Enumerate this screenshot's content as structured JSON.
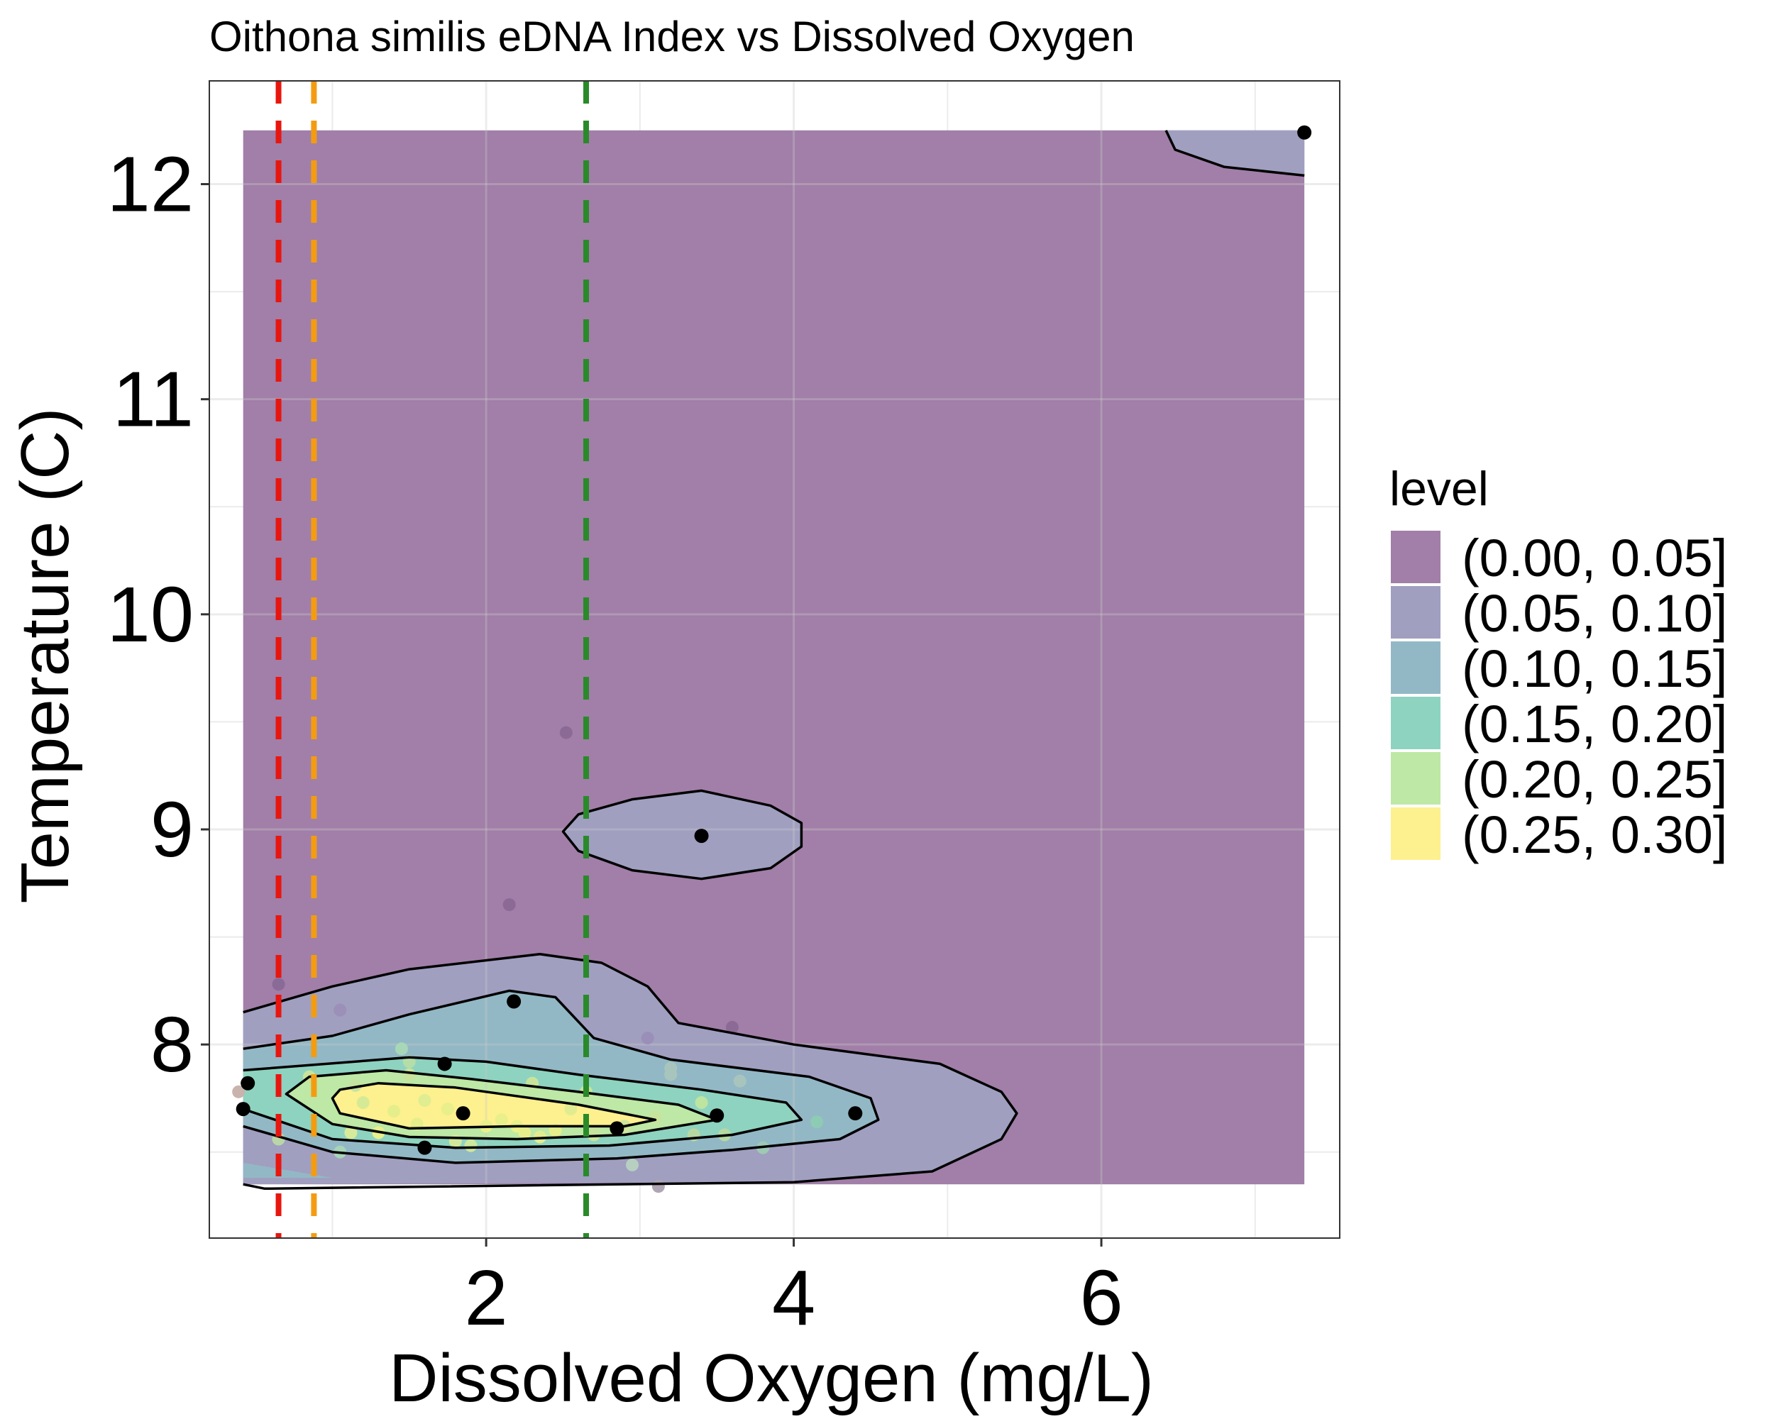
{
  "chart_data": {
    "type": "contour",
    "title": "Oithona similis eDNA Index vs Dissolved Oxygen",
    "xlabel": "Dissolved Oxygen (mg/L)",
    "ylabel": "Temperature (C)",
    "xlim": [
      0.2,
      7.55
    ],
    "ylim": [
      7.1,
      12.48
    ],
    "x_ticks": [
      2,
      4,
      6
    ],
    "y_ticks": [
      8,
      9,
      10,
      11,
      12
    ],
    "grid": true,
    "legend": {
      "title": "level",
      "position": "right",
      "entries": [
        {
          "label": "(0.00, 0.05]",
          "color": "#a17fa8"
        },
        {
          "label": "(0.05, 0.10]",
          "color": "#a09fc0"
        },
        {
          "label": "(0.10, 0.15]",
          "color": "#93b8c5"
        },
        {
          "label": "(0.15, 0.20]",
          "color": "#8ed3bf"
        },
        {
          "label": "(0.20, 0.25]",
          "color": "#bde8a5"
        },
        {
          "label": "(0.25, 0.30]",
          "color": "#fdf08f"
        }
      ]
    },
    "density_region": {
      "x": [
        0.42,
        7.32
      ],
      "y": [
        7.35,
        12.25
      ]
    },
    "reference_lines": [
      {
        "x": 0.65,
        "color": "#e8160f",
        "style": "dashed"
      },
      {
        "x": 0.88,
        "color": "#f39c12",
        "style": "dashed"
      },
      {
        "x": 2.65,
        "color": "#2a8a2a",
        "style": "dashed"
      }
    ],
    "contours": [
      {
        "level": "(0.05, 0.10]",
        "closed": false,
        "points": [
          [
            0.42,
            7.35
          ],
          [
            0.56,
            7.33
          ],
          [
            4.0,
            7.36
          ],
          [
            4.9,
            7.41
          ],
          [
            5.35,
            7.56
          ],
          [
            5.45,
            7.68
          ],
          [
            5.35,
            7.78
          ],
          [
            4.95,
            7.91
          ],
          [
            4.0,
            8.0
          ],
          [
            3.25,
            8.1
          ],
          [
            3.05,
            8.27
          ],
          [
            2.75,
            8.38
          ],
          [
            2.35,
            8.42
          ],
          [
            1.5,
            8.35
          ],
          [
            1.0,
            8.27
          ],
          [
            0.42,
            8.15
          ]
        ]
      },
      {
        "level": "(0.05, 0.10]",
        "closed": true,
        "points": [
          [
            2.5,
            8.99
          ],
          [
            2.6,
            8.9
          ],
          [
            2.95,
            8.81
          ],
          [
            3.4,
            8.77
          ],
          [
            3.85,
            8.82
          ],
          [
            4.05,
            8.92
          ],
          [
            4.05,
            9.03
          ],
          [
            3.85,
            9.11
          ],
          [
            3.4,
            9.18
          ],
          [
            2.95,
            9.14
          ],
          [
            2.6,
            9.07
          ]
        ]
      },
      {
        "level": "(0.05, 0.10]",
        "closed": false,
        "points": [
          [
            6.42,
            12.25
          ],
          [
            6.48,
            12.16
          ],
          [
            6.8,
            12.08
          ],
          [
            7.32,
            12.04
          ]
        ]
      },
      {
        "level": "(0.10, 0.15]",
        "closed": false,
        "points": [
          [
            0.42,
            7.62
          ],
          [
            1.0,
            7.5
          ],
          [
            1.8,
            7.45
          ],
          [
            2.85,
            7.47
          ],
          [
            3.6,
            7.51
          ],
          [
            4.3,
            7.56
          ],
          [
            4.55,
            7.65
          ],
          [
            4.5,
            7.75
          ],
          [
            4.1,
            7.85
          ],
          [
            3.2,
            7.93
          ],
          [
            2.7,
            8.03
          ],
          [
            2.45,
            8.22
          ],
          [
            2.15,
            8.25
          ],
          [
            1.5,
            8.14
          ],
          [
            1.0,
            8.04
          ],
          [
            0.42,
            7.98
          ]
        ]
      },
      {
        "level": "(0.15, 0.20]",
        "closed": false,
        "points": [
          [
            0.42,
            7.7
          ],
          [
            1.0,
            7.56
          ],
          [
            1.8,
            7.52
          ],
          [
            2.8,
            7.53
          ],
          [
            3.6,
            7.58
          ],
          [
            4.05,
            7.65
          ],
          [
            3.95,
            7.73
          ],
          [
            3.4,
            7.79
          ],
          [
            2.6,
            7.86
          ],
          [
            2.0,
            7.92
          ],
          [
            1.5,
            7.94
          ],
          [
            0.42,
            7.88
          ]
        ]
      },
      {
        "level": "(0.20, 0.25]",
        "closed": true,
        "points": [
          [
            0.7,
            7.77
          ],
          [
            1.0,
            7.63
          ],
          [
            1.5,
            7.57
          ],
          [
            2.2,
            7.56
          ],
          [
            2.9,
            7.58
          ],
          [
            3.5,
            7.65
          ],
          [
            3.25,
            7.72
          ],
          [
            2.6,
            7.78
          ],
          [
            1.9,
            7.84
          ],
          [
            1.35,
            7.88
          ],
          [
            0.85,
            7.85
          ]
        ]
      },
      {
        "level": "(0.25, 0.30]",
        "closed": true,
        "points": [
          [
            1.0,
            7.75
          ],
          [
            1.05,
            7.68
          ],
          [
            1.5,
            7.61
          ],
          [
            2.2,
            7.62
          ],
          [
            2.9,
            7.62
          ],
          [
            3.1,
            7.65
          ],
          [
            2.6,
            7.72
          ],
          [
            1.8,
            7.8
          ],
          [
            1.3,
            7.82
          ],
          [
            1.05,
            7.79
          ]
        ]
      }
    ],
    "density_fills": [
      {
        "color": "#a09fc0",
        "points": [
          [
            0.42,
            7.35
          ],
          [
            4.0,
            7.36
          ],
          [
            4.9,
            7.41
          ],
          [
            5.35,
            7.56
          ],
          [
            5.45,
            7.68
          ],
          [
            5.35,
            7.78
          ],
          [
            4.95,
            7.91
          ],
          [
            4.0,
            8.0
          ],
          [
            3.25,
            8.1
          ],
          [
            3.05,
            8.27
          ],
          [
            2.75,
            8.38
          ],
          [
            2.35,
            8.42
          ],
          [
            1.5,
            8.35
          ],
          [
            1.0,
            8.27
          ],
          [
            0.42,
            8.15
          ]
        ]
      },
      {
        "color": "#a09fc0",
        "points": [
          [
            2.5,
            8.99
          ],
          [
            2.6,
            8.9
          ],
          [
            2.95,
            8.81
          ],
          [
            3.4,
            8.77
          ],
          [
            3.85,
            8.82
          ],
          [
            4.05,
            8.92
          ],
          [
            4.05,
            9.03
          ],
          [
            3.85,
            9.11
          ],
          [
            3.4,
            9.18
          ],
          [
            2.95,
            9.14
          ],
          [
            2.6,
            9.07
          ]
        ]
      },
      {
        "color": "#a09fc0",
        "points": [
          [
            6.42,
            12.25
          ],
          [
            6.48,
            12.16
          ],
          [
            6.8,
            12.08
          ],
          [
            7.32,
            12.04
          ],
          [
            7.32,
            12.25
          ]
        ]
      },
      {
        "color": "#93b8c5",
        "points": [
          [
            0.42,
            7.38
          ],
          [
            1.0,
            7.38
          ],
          [
            0.42,
            7.45
          ],
          [
            0.42,
            7.62
          ],
          [
            1.0,
            7.5
          ],
          [
            1.8,
            7.45
          ],
          [
            2.85,
            7.47
          ],
          [
            3.6,
            7.51
          ],
          [
            4.3,
            7.56
          ],
          [
            4.55,
            7.65
          ],
          [
            4.5,
            7.75
          ],
          [
            4.1,
            7.85
          ],
          [
            3.2,
            7.93
          ],
          [
            2.7,
            8.03
          ],
          [
            2.45,
            8.22
          ],
          [
            2.15,
            8.25
          ],
          [
            1.5,
            8.14
          ],
          [
            1.0,
            8.04
          ],
          [
            0.42,
            7.98
          ]
        ]
      },
      {
        "color": "#8ed3bf",
        "points": [
          [
            0.42,
            7.7
          ],
          [
            1.0,
            7.56
          ],
          [
            1.8,
            7.52
          ],
          [
            2.8,
            7.53
          ],
          [
            3.6,
            7.58
          ],
          [
            4.05,
            7.65
          ],
          [
            3.95,
            7.73
          ],
          [
            3.4,
            7.79
          ],
          [
            2.6,
            7.86
          ],
          [
            2.0,
            7.92
          ],
          [
            1.5,
            7.94
          ],
          [
            0.42,
            7.88
          ]
        ]
      },
      {
        "color": "#bde8a5",
        "points": [
          [
            0.7,
            7.77
          ],
          [
            1.0,
            7.63
          ],
          [
            1.5,
            7.57
          ],
          [
            2.2,
            7.56
          ],
          [
            2.9,
            7.58
          ],
          [
            3.5,
            7.65
          ],
          [
            3.25,
            7.72
          ],
          [
            2.6,
            7.78
          ],
          [
            1.9,
            7.84
          ],
          [
            1.35,
            7.88
          ],
          [
            0.85,
            7.85
          ]
        ]
      },
      {
        "color": "#fdf08f",
        "points": [
          [
            1.0,
            7.75
          ],
          [
            1.05,
            7.68
          ],
          [
            1.5,
            7.61
          ],
          [
            2.2,
            7.62
          ],
          [
            2.9,
            7.62
          ],
          [
            3.1,
            7.65
          ],
          [
            2.6,
            7.72
          ],
          [
            1.8,
            7.8
          ],
          [
            1.3,
            7.82
          ],
          [
            1.05,
            7.79
          ]
        ]
      }
    ],
    "points_solid": [
      [
        0.42,
        7.7
      ],
      [
        0.45,
        7.82
      ],
      [
        1.73,
        7.91
      ],
      [
        1.85,
        7.68
      ],
      [
        1.6,
        7.52
      ],
      [
        2.18,
        8.2
      ],
      [
        2.85,
        7.61
      ],
      [
        3.5,
        7.67
      ],
      [
        3.4,
        8.97
      ],
      [
        4.4,
        7.68
      ],
      [
        7.32,
        12.24
      ]
    ],
    "points_faint": [
      {
        "x": 0.39,
        "y": 7.78,
        "color": "#c8b3ad"
      },
      {
        "x": 0.65,
        "y": 8.28,
        "color": "#8a6a96"
      },
      {
        "x": 0.65,
        "y": 7.56,
        "color": "#b9d7a6"
      },
      {
        "x": 0.85,
        "y": 7.85,
        "color": "#c8e49c"
      },
      {
        "x": 1.05,
        "y": 8.16,
        "color": "#9c8fb8"
      },
      {
        "x": 1.05,
        "y": 7.5,
        "color": "#a7d4b8"
      },
      {
        "x": 1.12,
        "y": 7.59,
        "color": "#d6eb9a"
      },
      {
        "x": 1.15,
        "y": 7.81,
        "color": "#c4e4a0"
      },
      {
        "x": 1.2,
        "y": 7.73,
        "color": "#d6ea95"
      },
      {
        "x": 1.3,
        "y": 7.59,
        "color": "#e8ef8e"
      },
      {
        "x": 1.4,
        "y": 7.69,
        "color": "#e6ee8c"
      },
      {
        "x": 1.45,
        "y": 7.98,
        "color": "#a8d7b8"
      },
      {
        "x": 1.5,
        "y": 7.92,
        "color": "#b5dda8"
      },
      {
        "x": 1.5,
        "y": 7.86,
        "color": "#c8e49c"
      },
      {
        "x": 1.55,
        "y": 7.63,
        "color": "#e6ee8c"
      },
      {
        "x": 1.6,
        "y": 7.74,
        "color": "#e0ed90"
      },
      {
        "x": 1.75,
        "y": 7.7,
        "color": "#e9ef8a"
      },
      {
        "x": 1.8,
        "y": 7.55,
        "color": "#d1e89c"
      },
      {
        "x": 1.9,
        "y": 7.53,
        "color": "#cde79e"
      },
      {
        "x": 2.0,
        "y": 7.62,
        "color": "#e9ef8a"
      },
      {
        "x": 2.1,
        "y": 7.65,
        "color": "#e9ef8a"
      },
      {
        "x": 2.15,
        "y": 8.65,
        "color": "#8b6a96"
      },
      {
        "x": 2.2,
        "y": 7.62,
        "color": "#e9ef8a"
      },
      {
        "x": 2.25,
        "y": 7.59,
        "color": "#e6ee8c"
      },
      {
        "x": 2.3,
        "y": 7.82,
        "color": "#c8e49c"
      },
      {
        "x": 2.35,
        "y": 7.57,
        "color": "#e1ec90"
      },
      {
        "x": 2.45,
        "y": 7.6,
        "color": "#e6ee8c"
      },
      {
        "x": 2.52,
        "y": 9.45,
        "color": "#8b6a96"
      },
      {
        "x": 2.55,
        "y": 7.7,
        "color": "#e1ec90"
      },
      {
        "x": 2.65,
        "y": 7.78,
        "color": "#c8e49c"
      },
      {
        "x": 2.7,
        "y": 7.58,
        "color": "#c8e49c"
      },
      {
        "x": 2.9,
        "y": 7.62,
        "color": "#d1e89c"
      },
      {
        "x": 2.95,
        "y": 7.44,
        "color": "#b7cfc0"
      },
      {
        "x": 3.05,
        "y": 8.03,
        "color": "#9a8fb8"
      },
      {
        "x": 3.1,
        "y": 7.66,
        "color": "#c8e49c"
      },
      {
        "x": 3.12,
        "y": 7.34,
        "color": "#b0a6b3"
      },
      {
        "x": 3.2,
        "y": 7.89,
        "color": "#a8c5bd"
      },
      {
        "x": 3.2,
        "y": 7.86,
        "color": "#a8c5bd"
      },
      {
        "x": 3.35,
        "y": 7.58,
        "color": "#b6d9a3"
      },
      {
        "x": 3.4,
        "y": 7.73,
        "color": "#bde4a0"
      },
      {
        "x": 3.55,
        "y": 7.58,
        "color": "#b6d9a3"
      },
      {
        "x": 3.6,
        "y": 8.08,
        "color": "#8b6a96"
      },
      {
        "x": 3.65,
        "y": 7.83,
        "color": "#a8c5bd"
      },
      {
        "x": 3.8,
        "y": 7.52,
        "color": "#9ec9b4"
      },
      {
        "x": 4.15,
        "y": 7.64,
        "color": "#8ecbb4"
      }
    ]
  }
}
